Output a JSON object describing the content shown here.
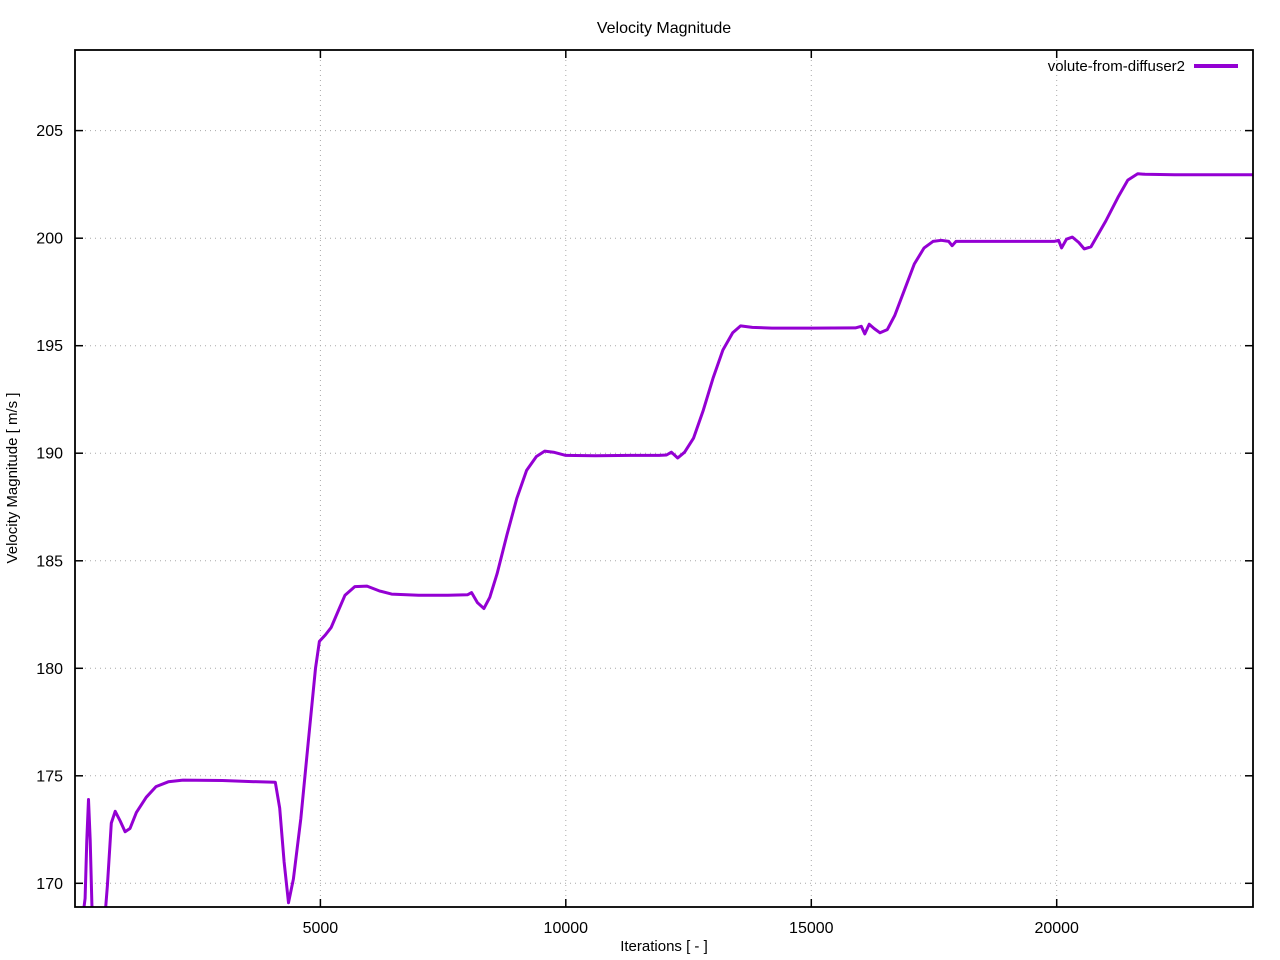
{
  "chart_data": {
    "type": "line",
    "title": "Velocity Magnitude",
    "xlabel": "Iterations [ - ]",
    "ylabel": "Velocity Magnitude [ m/s ]",
    "xlim": [
      0,
      24000
    ],
    "ylim": [
      168.9,
      208.75
    ],
    "x_ticks": [
      5000,
      10000,
      15000,
      20000
    ],
    "y_ticks": [
      170,
      175,
      180,
      185,
      190,
      195,
      200,
      205
    ],
    "grid": true,
    "legend_position": "top-right-inside",
    "line_color": "#9400d3",
    "series": [
      {
        "name": "volute-from-diffuser2",
        "color": "#9400d3",
        "points": [
          [
            150,
            168.3
          ],
          [
            205,
            169.3
          ],
          [
            240,
            172.0
          ],
          [
            275,
            173.9
          ],
          [
            310,
            172.0
          ],
          [
            345,
            169.0
          ],
          [
            380,
            167.6
          ],
          [
            580,
            167.6
          ],
          [
            660,
            169.9
          ],
          [
            740,
            172.8
          ],
          [
            820,
            173.35
          ],
          [
            920,
            172.9
          ],
          [
            1020,
            172.4
          ],
          [
            1120,
            172.55
          ],
          [
            1250,
            173.3
          ],
          [
            1450,
            174.0
          ],
          [
            1650,
            174.5
          ],
          [
            1900,
            174.72
          ],
          [
            2200,
            174.8
          ],
          [
            3000,
            174.78
          ],
          [
            3600,
            174.73
          ],
          [
            4080,
            174.7
          ],
          [
            4170,
            173.5
          ],
          [
            4260,
            171.0
          ],
          [
            4350,
            169.1
          ],
          [
            4450,
            170.2
          ],
          [
            4600,
            173.0
          ],
          [
            4750,
            176.5
          ],
          [
            4900,
            180.0
          ],
          [
            4980,
            181.25
          ],
          [
            5100,
            181.55
          ],
          [
            5220,
            181.9
          ],
          [
            5350,
            182.6
          ],
          [
            5500,
            183.4
          ],
          [
            5700,
            183.8
          ],
          [
            5950,
            183.82
          ],
          [
            6200,
            183.6
          ],
          [
            6450,
            183.45
          ],
          [
            7000,
            183.4
          ],
          [
            7600,
            183.4
          ],
          [
            8000,
            183.42
          ],
          [
            8080,
            183.52
          ],
          [
            8200,
            183.05
          ],
          [
            8330,
            182.78
          ],
          [
            8450,
            183.3
          ],
          [
            8600,
            184.4
          ],
          [
            8800,
            186.2
          ],
          [
            9000,
            187.9
          ],
          [
            9200,
            189.2
          ],
          [
            9400,
            189.85
          ],
          [
            9570,
            190.1
          ],
          [
            9750,
            190.05
          ],
          [
            10000,
            189.9
          ],
          [
            10600,
            189.88
          ],
          [
            11300,
            189.9
          ],
          [
            11900,
            189.9
          ],
          [
            12050,
            189.92
          ],
          [
            12150,
            190.05
          ],
          [
            12280,
            189.78
          ],
          [
            12420,
            190.05
          ],
          [
            12600,
            190.7
          ],
          [
            12800,
            192.0
          ],
          [
            13000,
            193.5
          ],
          [
            13200,
            194.8
          ],
          [
            13400,
            195.6
          ],
          [
            13560,
            195.92
          ],
          [
            13800,
            195.85
          ],
          [
            14200,
            195.82
          ],
          [
            15000,
            195.82
          ],
          [
            15900,
            195.83
          ],
          [
            16020,
            195.9
          ],
          [
            16090,
            195.55
          ],
          [
            16180,
            196.0
          ],
          [
            16280,
            195.8
          ],
          [
            16400,
            195.6
          ],
          [
            16550,
            195.75
          ],
          [
            16700,
            196.4
          ],
          [
            16900,
            197.6
          ],
          [
            17100,
            198.8
          ],
          [
            17300,
            199.55
          ],
          [
            17480,
            199.85
          ],
          [
            17650,
            199.9
          ],
          [
            17800,
            199.85
          ],
          [
            17870,
            199.65
          ],
          [
            17950,
            199.85
          ],
          [
            18400,
            199.85
          ],
          [
            19200,
            199.85
          ],
          [
            19950,
            199.85
          ],
          [
            20040,
            199.9
          ],
          [
            20100,
            199.55
          ],
          [
            20200,
            199.95
          ],
          [
            20320,
            200.05
          ],
          [
            20450,
            199.8
          ],
          [
            20560,
            199.5
          ],
          [
            20700,
            199.6
          ],
          [
            20850,
            200.2
          ],
          [
            21000,
            200.8
          ],
          [
            21250,
            201.9
          ],
          [
            21450,
            202.7
          ],
          [
            21650,
            203.0
          ],
          [
            21800,
            202.97
          ],
          [
            22400,
            202.95
          ],
          [
            23200,
            202.95
          ],
          [
            24000,
            202.95
          ]
        ]
      }
    ]
  },
  "style": {
    "grid_color": "#a8a8a8",
    "border_color": "#000000",
    "line_width": 3
  }
}
